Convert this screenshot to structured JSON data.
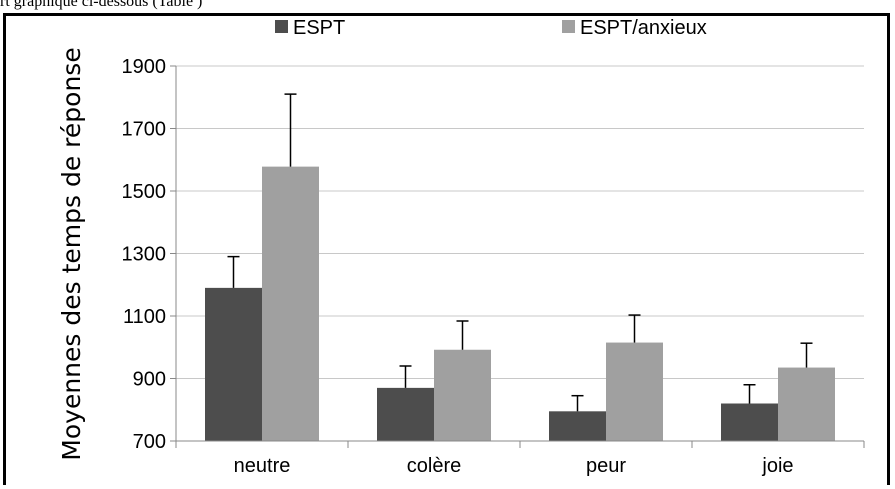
{
  "caption": "rt graphique ci-dessous (Table )",
  "chart_data": {
    "type": "bar",
    "categories": [
      "neutre",
      "colère",
      "peur",
      "joie"
    ],
    "series": [
      {
        "name": "ESPT",
        "values": [
          1190,
          870,
          795,
          820
        ],
        "errors": [
          100,
          70,
          50,
          60
        ],
        "color": "#4d4d4d"
      },
      {
        "name": "ESPT/anxieux",
        "values": [
          1578,
          992,
          1015,
          935
        ],
        "errors": [
          232,
          92,
          88,
          78
        ],
        "color": "#a0a0a0"
      }
    ],
    "ylabel": "Moyennes des temps de réponse",
    "ylim": [
      700,
      1900
    ],
    "yticks": [
      700,
      900,
      1100,
      1300,
      1500,
      1700,
      1900
    ],
    "grid": true,
    "legend": "top-center"
  }
}
